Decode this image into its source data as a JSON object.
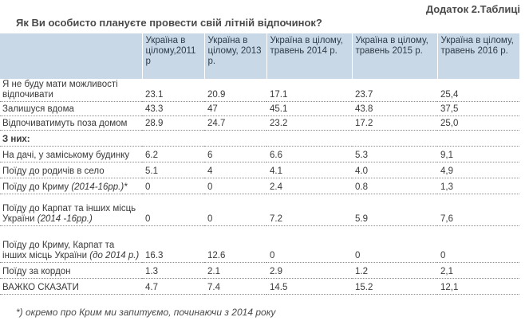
{
  "header": {
    "appendix": "Додаток 2.Таблиці",
    "question": "Як Ви особисто плануєте провести  свій літній відпочинок?"
  },
  "columns": [
    "Україна в цілому,2011 р",
    "Україна в цілому, 2013 р.",
    "Україна в цілому, травень 2014 р.",
    "Україна в цілому, травень 2015 р.",
    "Україна в цілому, травень 2016 р."
  ],
  "rows": [
    {
      "label": "Я не буду мати можливості відпочивати",
      "note": "",
      "values": [
        "23.1",
        "20.9",
        "17.1",
        "23.7",
        "25,4"
      ]
    },
    {
      "label": "Залишуся вдома",
      "note": "",
      "values": [
        "43.3",
        "47",
        "45.1",
        "43.8",
        "37,5"
      ]
    },
    {
      "label": "Відпочиватимуть поза домом",
      "note": "",
      "values": [
        "28.9",
        "24.7",
        "23.2",
        "17.2",
        "25,0"
      ]
    },
    {
      "label": "З  них:",
      "note": "",
      "values": [
        "",
        "",
        "",
        "",
        ""
      ]
    },
    {
      "label": "На дачі, у заміському будинку",
      "note": "",
      "values": [
        "6.2",
        "6",
        "6.6",
        "5.3",
        "9,1"
      ]
    },
    {
      "label": "Поїду до родичів в село",
      "note": "",
      "values": [
        "5.1",
        "4",
        "4.1",
        "4.0",
        "4,9"
      ]
    },
    {
      "label": "Поїду до Криму ",
      "note": "(2014-16рр.)*",
      "values": [
        "0",
        "0",
        "2.4",
        "0.8",
        "1,3"
      ]
    },
    {
      "label": "Поїду до Карпат та інших місць України ",
      "note": "(2014 -16рр.)",
      "values": [
        "0",
        "0",
        "7.2",
        "5.9",
        "7,6"
      ]
    },
    {
      "label": "Поїду до Криму, Карпат та інших місць України ",
      "note": "(до 2014 р.)",
      "values": [
        "16.3",
        "12.6",
        "0",
        "0",
        "0"
      ]
    },
    {
      "label": "Поїду за кордон",
      "note": "",
      "values": [
        "1.3",
        "2.1",
        "2.9",
        "1.2",
        "2,1"
      ]
    },
    {
      "label": "ВАЖКО СКАЗАТИ",
      "note": "",
      "values": [
        "4.7",
        "7.4",
        "14.5",
        "15.2",
        "12,1"
      ]
    }
  ],
  "footnote": "*) окремо про Крим ми запитуємо, починаючи з 2014 року"
}
